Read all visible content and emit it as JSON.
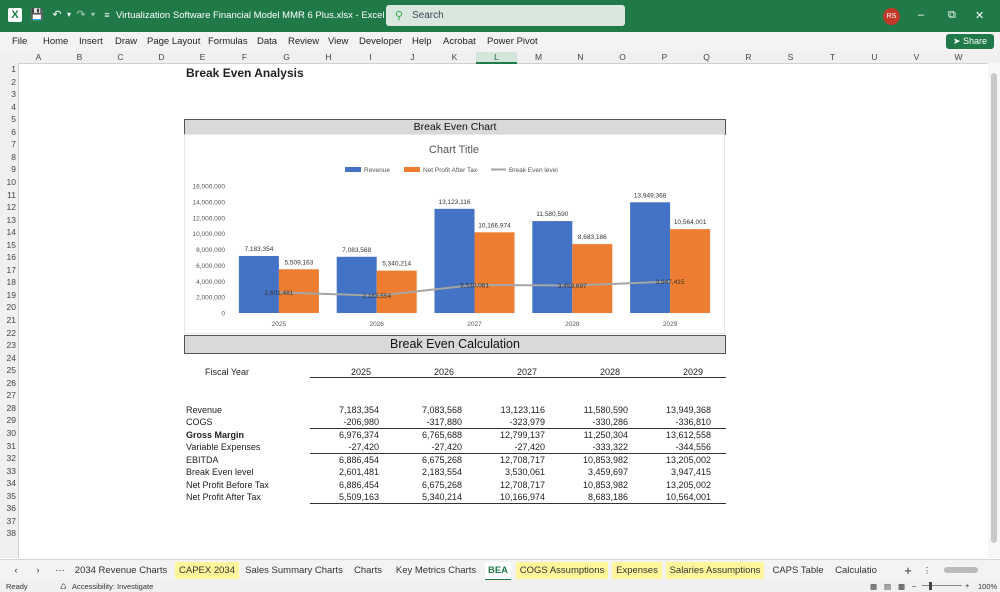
{
  "app": {
    "doc_title": "Virtualization Software Financial Model MMR 6 Plus.xlsx  -  Excel",
    "search_placeholder": "Search",
    "avatar_initials": "RS",
    "accent": "#1f7a48"
  },
  "menu": [
    "File",
    "Home",
    "Insert",
    "Draw",
    "Page Layout",
    "Formulas",
    "Data",
    "Review",
    "View",
    "Developer",
    "Help",
    "Acrobat",
    "Power Pivot"
  ],
  "share_label": "Share",
  "columns": [
    "A",
    "B",
    "C",
    "D",
    "E",
    "F",
    "G",
    "H",
    "I",
    "J",
    "K",
    "L",
    "M",
    "N",
    "O",
    "P",
    "Q",
    "R",
    "S",
    "T",
    "U",
    "V",
    "W"
  ],
  "selected_column": "L",
  "rows": [
    "1",
    "2",
    "3",
    "4",
    "5",
    "6",
    "7",
    "8",
    "9",
    "10",
    "11",
    "12",
    "13",
    "14",
    "15",
    "16",
    "17",
    "18",
    "19",
    "20",
    "21",
    "22",
    "23",
    "24",
    "25",
    "26",
    "27",
    "28",
    "29",
    "30",
    "31",
    "32",
    "33",
    "34",
    "35",
    "36",
    "37",
    "38"
  ],
  "sheet": {
    "title": "Break Even Analysis",
    "chart_band_title": "Break Even Chart",
    "calc_band_title": "Break Even Calculation",
    "fiscal_year_label": "Fiscal Year",
    "years": [
      "2025",
      "2026",
      "2027",
      "2028",
      "2029"
    ],
    "table": [
      {
        "label": "Revenue",
        "bold": false,
        "values": [
          "7,183,354",
          "7,083,568",
          "13,123,116",
          "11,580,590",
          "13,949,368"
        ]
      },
      {
        "label": "COGS",
        "bold": false,
        "values": [
          "-206,980",
          "-317,880",
          "-323,979",
          "-330,286",
          "-336,810"
        ]
      },
      {
        "label": "Gross Margin",
        "bold": true,
        "values": [
          "6,976,374",
          "6,765,688",
          "12,799,137",
          "11,250,304",
          "13,612,558"
        ]
      },
      {
        "label": "Variable Expenses",
        "bold": false,
        "values": [
          "-27,420",
          "-27,420",
          "-27,420",
          "-333,322",
          "-344,556"
        ]
      },
      {
        "label": "EBITDA",
        "bold": false,
        "values": [
          "6,886,454",
          "6,675,268",
          "12,708,717",
          "10,853,982",
          "13,205,002"
        ]
      },
      {
        "label": "Break Even level",
        "bold": false,
        "values": [
          "2,601,481",
          "2,183,554",
          "3,530,061",
          "3,459,697",
          "3,947,415"
        ]
      },
      {
        "label": "Net Profit Before Tax",
        "bold": false,
        "values": [
          "6,886,454",
          "6,675,268",
          "12,708,717",
          "10,853,982",
          "13,205,002"
        ]
      },
      {
        "label": "Net Profit After Tax",
        "bold": false,
        "values": [
          "5,509,163",
          "5,340,214",
          "10,166,974",
          "8,683,186",
          "10,564,001"
        ]
      }
    ]
  },
  "chart_data": {
    "type": "bar",
    "title": "Chart Title",
    "categories": [
      "2025",
      "2026",
      "2027",
      "2028",
      "2029"
    ],
    "series": [
      {
        "name": "Revenue",
        "kind": "bar",
        "color": "#4472c4",
        "values": [
          7183354,
          7083568,
          13123116,
          11580590,
          13949368
        ],
        "labels": [
          "7,183,354",
          "7,083,568",
          "13,123,116",
          "11,580,590",
          "13,949,368"
        ]
      },
      {
        "name": "Net Profit After Tax",
        "kind": "bar",
        "color": "#ed7d31",
        "values": [
          5509163,
          5340214,
          10166974,
          8683186,
          10564001
        ],
        "labels": [
          "5,509,163",
          "5,340,214",
          "10,166,974",
          "8,683,186",
          "10,564,001"
        ]
      },
      {
        "name": "Break Even level",
        "kind": "line",
        "color": "#a5a5a5",
        "values": [
          2601481,
          2183554,
          3530061,
          3459697,
          3947415
        ],
        "labels": [
          "2,601,481",
          "2,183,554",
          "3,530,061",
          "3,459,697",
          "3,947,415"
        ]
      }
    ],
    "ylim": [
      0,
      16000000
    ],
    "yticks": [
      "0",
      "2,000,000",
      "4,000,000",
      "6,000,000",
      "8,000,000",
      "10,000,000",
      "12,000,000",
      "14,000,000",
      "16,000,000"
    ],
    "legend": "top",
    "grid": false
  },
  "tabs": [
    {
      "label": "2034 Revenue Charts",
      "style": "normal"
    },
    {
      "label": "CAPEX 2034",
      "style": "yellow"
    },
    {
      "label": "Sales Summary Charts",
      "style": "normal"
    },
    {
      "label": "Charts",
      "style": "normal"
    },
    {
      "label": "Key Metrics Charts",
      "style": "normal"
    },
    {
      "label": "BEA",
      "style": "active"
    },
    {
      "label": "COGS Assumptions",
      "style": "yellow"
    },
    {
      "label": "Expenses",
      "style": "yellow"
    },
    {
      "label": "Salaries Assumptions",
      "style": "yellow"
    },
    {
      "label": "CAPS Table",
      "style": "normal"
    },
    {
      "label": "Calculatio",
      "style": "normal"
    }
  ],
  "status": {
    "ready": "Ready",
    "accessibility": "Accessibility: Investigate",
    "zoom": "100%"
  }
}
